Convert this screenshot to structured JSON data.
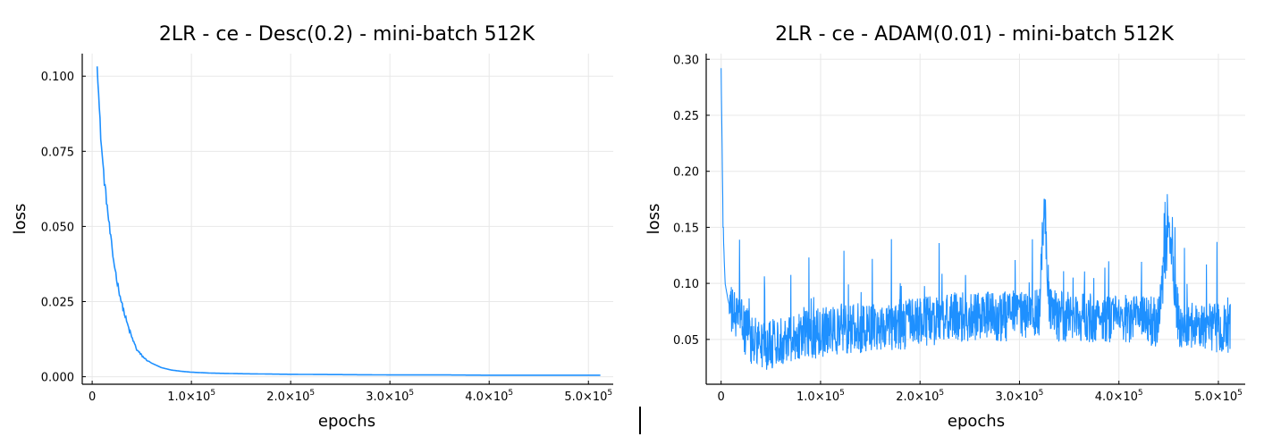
{
  "chart_data": [
    {
      "type": "line",
      "title": "2LR - ce - Desc(0.2) - mini-batch 512K",
      "xlabel": "epochs",
      "ylabel": "loss",
      "xlim": [
        -10000,
        525000
      ],
      "ylim": [
        -0.0025,
        0.1075
      ],
      "x_ticks": [
        {
          "value": 0,
          "base": "0",
          "exp": ""
        },
        {
          "value": 100000,
          "base": "1.0×10",
          "exp": "5"
        },
        {
          "value": 200000,
          "base": "2.0×10",
          "exp": "5"
        },
        {
          "value": 300000,
          "base": "3.0×10",
          "exp": "5"
        },
        {
          "value": 400000,
          "base": "4.0×10",
          "exp": "5"
        },
        {
          "value": 500000,
          "base": "5.0×10",
          "exp": "5"
        }
      ],
      "y_ticks": [
        {
          "value": 0.0,
          "label": "0.000"
        },
        {
          "value": 0.025,
          "label": "0.025"
        },
        {
          "value": 0.05,
          "label": "0.050"
        },
        {
          "value": 0.075,
          "label": "0.075"
        },
        {
          "value": 0.1,
          "label": "0.100"
        }
      ],
      "grid": true,
      "legend": "none",
      "line_color": "#1e90ff",
      "series": [
        {
          "x": [
            5000,
            7000,
            9000,
            12000,
            15000,
            18000,
            21000,
            25000,
            30000,
            35000,
            40000,
            45000,
            50000,
            55000,
            60000,
            70000,
            80000,
            90000,
            100000,
            120000,
            150000,
            200000,
            250000,
            300000,
            350000,
            400000,
            450000,
            500000,
            512000
          ],
          "y": [
            0.105,
            0.09,
            0.078,
            0.066,
            0.057,
            0.048,
            0.04,
            0.032,
            0.024,
            0.018,
            0.013,
            0.009,
            0.007,
            0.0055,
            0.0045,
            0.003,
            0.0022,
            0.0018,
            0.0015,
            0.0012,
            0.001,
            0.0008,
            0.0007,
            0.0006,
            0.0006,
            0.0005,
            0.0005,
            0.0005,
            0.0005
          ]
        }
      ]
    },
    {
      "type": "line",
      "title": "2LR - ce - ADAM(0.01) - mini-batch 512K",
      "xlabel": "epochs",
      "ylabel": "loss",
      "xlim": [
        -15000,
        527000
      ],
      "ylim": [
        0.01,
        0.305
      ],
      "x_ticks": [
        {
          "value": 0,
          "base": "0",
          "exp": ""
        },
        {
          "value": 100000,
          "base": "1.0×10",
          "exp": "5"
        },
        {
          "value": 200000,
          "base": "2.0×10",
          "exp": "5"
        },
        {
          "value": 300000,
          "base": "3.0×10",
          "exp": "5"
        },
        {
          "value": 400000,
          "base": "4.0×10",
          "exp": "5"
        },
        {
          "value": 500000,
          "base": "5.0×10",
          "exp": "5"
        }
      ],
      "y_ticks": [
        {
          "value": 0.05,
          "label": "0.05"
        },
        {
          "value": 0.1,
          "label": "0.10"
        },
        {
          "value": 0.15,
          "label": "0.15"
        },
        {
          "value": 0.2,
          "label": "0.20"
        },
        {
          "value": 0.25,
          "label": "0.25"
        },
        {
          "value": 0.3,
          "label": "0.30"
        }
      ],
      "grid": true,
      "legend": "none",
      "line_color": "#1e90ff",
      "series": [
        {
          "x": [
            0,
            2000,
            4000,
            7000,
            10000,
            15000,
            20000,
            30000,
            40000,
            50000,
            60000,
            80000,
            100000,
            120000,
            140000,
            160000,
            180000,
            200000,
            220000,
            240000,
            260000,
            280000,
            300000,
            320000,
            325000,
            330000,
            340000,
            360000,
            380000,
            400000,
            420000,
            440000,
            450000,
            460000,
            480000,
            500000,
            512000
          ],
          "y": [
            0.292,
            0.15,
            0.1,
            0.085,
            0.075,
            0.07,
            0.065,
            0.05,
            0.045,
            0.045,
            0.05,
            0.055,
            0.055,
            0.06,
            0.06,
            0.062,
            0.063,
            0.065,
            0.068,
            0.07,
            0.07,
            0.07,
            0.072,
            0.075,
            0.175,
            0.075,
            0.07,
            0.07,
            0.068,
            0.068,
            0.068,
            0.065,
            0.15,
            0.065,
            0.065,
            0.06,
            0.06
          ]
        }
      ]
    }
  ]
}
